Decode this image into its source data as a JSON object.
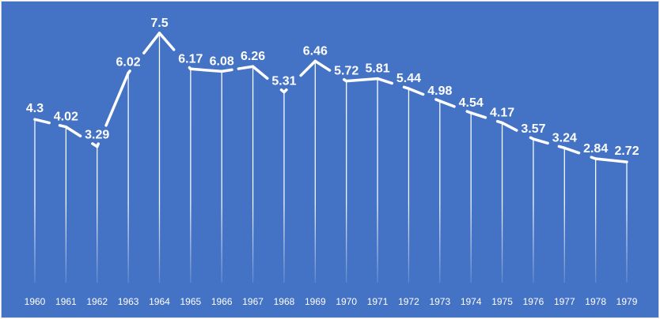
{
  "chart_data": {
    "type": "line",
    "categories": [
      "1960",
      "1961",
      "1962",
      "1963",
      "1964",
      "1965",
      "1966",
      "1967",
      "1968",
      "1969",
      "1970",
      "1971",
      "1972",
      "1973",
      "1974",
      "1975",
      "1976",
      "1977",
      "1978",
      "1979"
    ],
    "values": [
      4.3,
      4.02,
      3.29,
      6.02,
      7.5,
      6.17,
      6.08,
      6.26,
      5.31,
      6.46,
      5.72,
      5.81,
      5.44,
      4.98,
      4.54,
      4.17,
      3.57,
      3.24,
      2.84,
      2.72
    ],
    "data_label_text": [
      "4.3",
      "4.02",
      "3.29",
      "6.02",
      "7.5",
      "6.17",
      "6.08",
      "6.26",
      "5.31",
      "6.46",
      "5.72",
      "5.81",
      "5.44",
      "4.98",
      "4.54",
      "4.17",
      "3.57",
      "3.24",
      "2.84",
      "2.72"
    ],
    "title": "",
    "xlabel": "",
    "ylabel": "",
    "ylim": [
      0,
      8
    ],
    "grid": false,
    "legend": "none",
    "drop_lines": true,
    "data_labels": true,
    "colors": {
      "background": "#4472c4",
      "line": "#ffffff",
      "text": "#ffffff",
      "border": "#d9d9d9"
    }
  }
}
